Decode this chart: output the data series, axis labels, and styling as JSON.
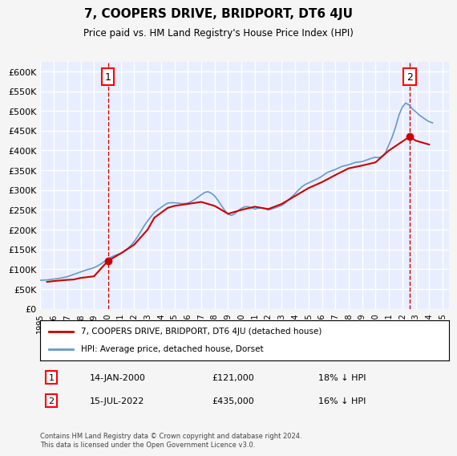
{
  "title": "7, COOPERS DRIVE, BRIDPORT, DT6 4JU",
  "subtitle": "Price paid vs. HM Land Registry's House Price Index (HPI)",
  "ylim": [
    0,
    625000
  ],
  "yticks": [
    0,
    50000,
    100000,
    150000,
    200000,
    250000,
    300000,
    350000,
    400000,
    450000,
    500000,
    550000,
    600000
  ],
  "xlim_start": 1995.0,
  "xlim_end": 2025.5,
  "background_color": "#f0f4ff",
  "plot_bg_color": "#e8eeff",
  "grid_color": "#ffffff",
  "hpi_color": "#6699cc",
  "price_color": "#cc0000",
  "sale1_date": 2000.04,
  "sale1_price": 121000,
  "sale2_date": 2022.54,
  "sale2_price": 435000,
  "legend_label_price": "7, COOPERS DRIVE, BRIDPORT, DT6 4JU (detached house)",
  "legend_label_hpi": "HPI: Average price, detached house, Dorset",
  "annotation1": "14-JAN-2000",
  "annotation1_price": "£121,000",
  "annotation1_pct": "18% ↓ HPI",
  "annotation2": "15-JUL-2022",
  "annotation2_price": "£435,000",
  "annotation2_pct": "16% ↓ HPI",
  "footer": "Contains HM Land Registry data © Crown copyright and database right 2024.\nThis data is licensed under the Open Government Licence v3.0.",
  "hpi_data_x": [
    1995.0,
    1995.25,
    1995.5,
    1995.75,
    1996.0,
    1996.25,
    1996.5,
    1996.75,
    1997.0,
    1997.25,
    1997.5,
    1997.75,
    1998.0,
    1998.25,
    1998.5,
    1998.75,
    1999.0,
    1999.25,
    1999.5,
    1999.75,
    2000.0,
    2000.25,
    2000.5,
    2000.75,
    2001.0,
    2001.25,
    2001.5,
    2001.75,
    2002.0,
    2002.25,
    2002.5,
    2002.75,
    2003.0,
    2003.25,
    2003.5,
    2003.75,
    2004.0,
    2004.25,
    2004.5,
    2004.75,
    2005.0,
    2005.25,
    2005.5,
    2005.75,
    2006.0,
    2006.25,
    2006.5,
    2006.75,
    2007.0,
    2007.25,
    2007.5,
    2007.75,
    2008.0,
    2008.25,
    2008.5,
    2008.75,
    2009.0,
    2009.25,
    2009.5,
    2009.75,
    2010.0,
    2010.25,
    2010.5,
    2010.75,
    2011.0,
    2011.25,
    2011.5,
    2011.75,
    2012.0,
    2012.25,
    2012.5,
    2012.75,
    2013.0,
    2013.25,
    2013.5,
    2013.75,
    2014.0,
    2014.25,
    2014.5,
    2014.75,
    2015.0,
    2015.25,
    2015.5,
    2015.75,
    2016.0,
    2016.25,
    2016.5,
    2016.75,
    2017.0,
    2017.25,
    2017.5,
    2017.75,
    2018.0,
    2018.25,
    2018.5,
    2018.75,
    2019.0,
    2019.25,
    2019.5,
    2019.75,
    2020.0,
    2020.25,
    2020.5,
    2020.75,
    2021.0,
    2021.25,
    2021.5,
    2021.75,
    2022.0,
    2022.25,
    2022.5,
    2022.75,
    2023.0,
    2023.25,
    2023.5,
    2023.75,
    2024.0,
    2024.25
  ],
  "hpi_data_y": [
    72000,
    72500,
    73000,
    74000,
    75000,
    76000,
    77500,
    79000,
    81000,
    84000,
    87000,
    90000,
    93000,
    96000,
    99000,
    101000,
    104000,
    108000,
    113000,
    119000,
    125000,
    130000,
    134000,
    137000,
    140000,
    145000,
    152000,
    160000,
    170000,
    182000,
    196000,
    210000,
    222000,
    233000,
    243000,
    250000,
    256000,
    262000,
    267000,
    268000,
    268000,
    267000,
    266000,
    266000,
    267000,
    271000,
    276000,
    282000,
    288000,
    294000,
    296000,
    292000,
    285000,
    274000,
    261000,
    249000,
    239000,
    236000,
    240000,
    248000,
    254000,
    258000,
    258000,
    255000,
    252000,
    254000,
    255000,
    253000,
    250000,
    252000,
    255000,
    258000,
    261000,
    267000,
    275000,
    283000,
    291000,
    300000,
    308000,
    314000,
    318000,
    322000,
    326000,
    330000,
    335000,
    341000,
    346000,
    349000,
    352000,
    356000,
    360000,
    362000,
    364000,
    367000,
    370000,
    371000,
    372000,
    375000,
    378000,
    381000,
    383000,
    382000,
    385000,
    395000,
    415000,
    435000,
    460000,
    490000,
    510000,
    520000,
    515000,
    505000,
    498000,
    490000,
    484000,
    478000,
    473000,
    470000
  ],
  "price_data_x": [
    1995.5,
    1996.0,
    1997.0,
    1997.5,
    1998.0,
    1999.0,
    2000.04,
    2001.0,
    2002.0,
    2003.0,
    2003.5,
    2004.5,
    2005.0,
    2006.0,
    2007.0,
    2008.0,
    2009.0,
    2010.0,
    2011.0,
    2012.0,
    2013.0,
    2014.0,
    2015.0,
    2016.0,
    2017.0,
    2018.0,
    2019.0,
    2020.0,
    2021.0,
    2022.54,
    2023.0,
    2024.0
  ],
  "price_data_y": [
    68000,
    70000,
    73000,
    74000,
    78000,
    82000,
    121000,
    140000,
    162000,
    200000,
    230000,
    255000,
    260000,
    265000,
    270000,
    260000,
    240000,
    250000,
    258000,
    252000,
    265000,
    285000,
    305000,
    320000,
    338000,
    355000,
    362000,
    370000,
    400000,
    435000,
    425000,
    415000
  ]
}
